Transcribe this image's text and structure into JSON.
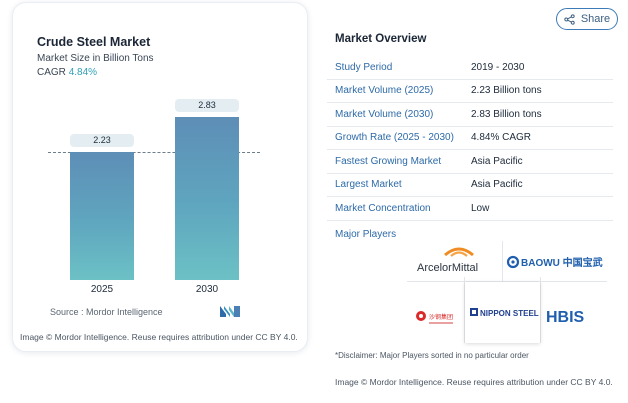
{
  "chart": {
    "title": "Crude Steel Market",
    "subtitle": "Market Size in Billion Tons",
    "cagr_label": "CAGR",
    "cagr_value": "4.84%",
    "source": "Source :  Mordor Intelligence",
    "credit": "Image © Mordor Intelligence. Reuse requires attribution under CC BY 4.0."
  },
  "chart_data": {
    "type": "bar",
    "title": "Crude Steel Market",
    "categories": [
      "2025",
      "2030"
    ],
    "values": [
      2.23,
      2.83
    ],
    "value_labels": [
      "2.23",
      "2.83"
    ],
    "ylabel": "Market Size in Billion Tons",
    "ylim": [
      0,
      2.9
    ],
    "colors": [
      "#5e8eb6",
      "#6cc1c5"
    ]
  },
  "share": {
    "label": "Share",
    "icon": "share-icon"
  },
  "overview": {
    "title": "Market Overview",
    "rows": [
      {
        "key": "Study Period",
        "value": "2019 - 2030"
      },
      {
        "key": "Market Volume (2025)",
        "value": "2.23 Billion tons"
      },
      {
        "key": "Market Volume (2030)",
        "value": "2.83 Billion tons"
      },
      {
        "key": "Growth Rate (2025 - 2030)",
        "value": "4.84% CAGR"
      },
      {
        "key": "Fastest Growing Market",
        "value": "Asia Pacific"
      },
      {
        "key": "Largest Market",
        "value": "Asia Pacific"
      },
      {
        "key": "Market Concentration",
        "value": "Low"
      }
    ],
    "major_players_label": "Major Players",
    "players": [
      "ArcelorMittal",
      "BAOWU 中国宝武",
      "沙钢集团",
      "NIPPON STEEL",
      "HBIS"
    ],
    "disclaimer": "*Disclaimer: Major Players sorted in no particular order",
    "credit": "Image © Mordor Intelligence. Reuse requires attribution under CC BY 4.0."
  }
}
